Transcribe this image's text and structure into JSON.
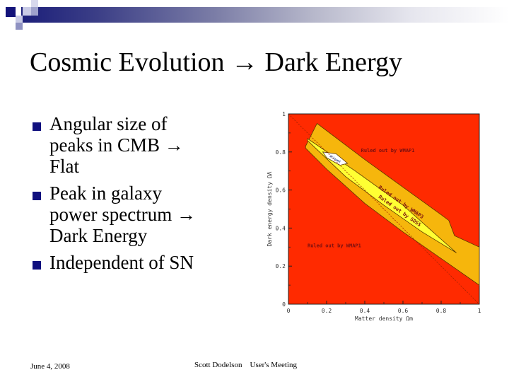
{
  "slide": {
    "title": "Cosmic Evolution → Dark Energy",
    "bullets": [
      {
        "lines": [
          "Angular size of",
          "peaks in CMB →",
          "Flat"
        ]
      },
      {
        "lines": [
          "Peak in galaxy",
          "power spectrum →",
          "Dark Energy"
        ]
      },
      {
        "lines": [
          "Independent of SN"
        ]
      }
    ],
    "footer": {
      "date": "June 4, 2008",
      "center": "Scott Dodelson    User's Meeting"
    },
    "colors": {
      "accent_navy": "#10107e",
      "ruled_out_red": "#ff2a00",
      "orange_band": "#f6b60c",
      "yellow_band": "#ffff33"
    }
  },
  "chart_data": {
    "type": "contour",
    "title": "",
    "xlabel": "Matter density Ωm",
    "ylabel": "Dark energy density ΩΛ",
    "xlim": [
      0,
      1
    ],
    "ylim": [
      0,
      1
    ],
    "x_ticks": [
      "0",
      "0.2",
      "0.4",
      "0.6",
      "0.8",
      "1"
    ],
    "y_ticks": [
      "0",
      "0.2",
      "0.4",
      "0.6",
      "0.8",
      "1"
    ],
    "regions": [
      {
        "name": "Ruled out by WMAP1",
        "color": "#ff2a00",
        "label_positions": [
          [
            0.35,
            0.82
          ],
          [
            0.1,
            0.3
          ]
        ]
      },
      {
        "name": "Ruled out by WMAP3",
        "color": "#f6b60c",
        "polygon": [
          [
            0.09,
            0.83
          ],
          [
            0.15,
            0.95
          ],
          [
            0.4,
            0.76
          ],
          [
            0.8,
            0.47
          ],
          [
            0.84,
            0.44
          ],
          [
            0.87,
            0.36
          ],
          [
            1.0,
            0.3
          ],
          [
            1.0,
            0.1
          ],
          [
            0.8,
            0.24
          ],
          [
            0.6,
            0.38
          ],
          [
            0.4,
            0.53
          ],
          [
            0.2,
            0.71
          ],
          [
            0.09,
            0.82
          ]
        ]
      },
      {
        "name": "Ruled out by SDSS",
        "color": "#ffff33",
        "polygon": [
          [
            0.1,
            0.87
          ],
          [
            0.35,
            0.7
          ],
          [
            0.6,
            0.52
          ],
          [
            0.88,
            0.27
          ],
          [
            0.7,
            0.38
          ],
          [
            0.5,
            0.52
          ],
          [
            0.3,
            0.67
          ],
          [
            0.1,
            0.86
          ]
        ]
      },
      {
        "name": "Allowed",
        "color": "#ffffff",
        "polygon": [
          [
            0.18,
            0.8
          ],
          [
            0.25,
            0.79
          ],
          [
            0.31,
            0.74
          ],
          [
            0.27,
            0.73
          ],
          [
            0.2,
            0.77
          ]
        ]
      }
    ],
    "annotations": [
      "Ruled out by WMAP1",
      "Ruled out by WMAP1",
      "Ruled out by WMAP3",
      "Ruled out by SDSS",
      "Allowed"
    ],
    "flat_line": [
      [
        0,
        1
      ],
      [
        1,
        0
      ]
    ],
    "grid": false,
    "legend": "none"
  }
}
